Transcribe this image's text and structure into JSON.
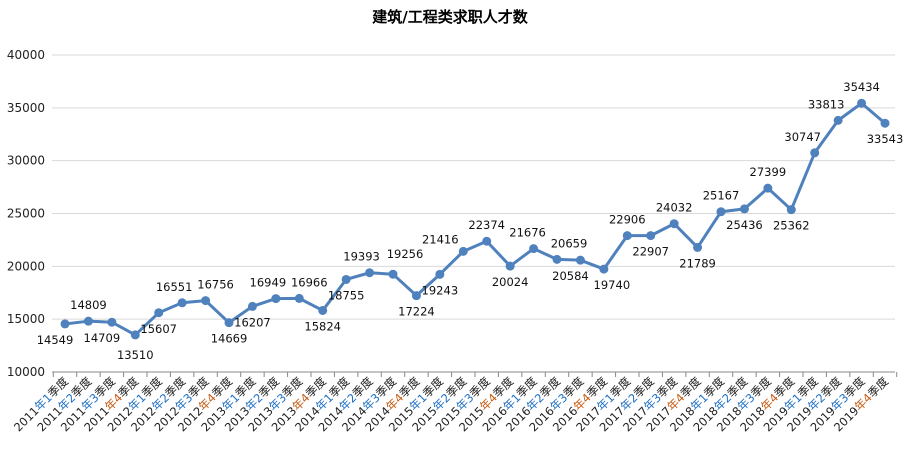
{
  "chart_data": {
    "type": "line",
    "title": "建筑/工程类求职人才数",
    "xlabel": "",
    "ylabel": "",
    "ylim": [
      10000,
      40000
    ],
    "yticks": [
      10000,
      15000,
      20000,
      25000,
      30000,
      35000,
      40000
    ],
    "grid": true,
    "legend": "none",
    "line_color": "#4F81BD",
    "categories": [
      "2011年1季度",
      "2011年2季度",
      "2011年3季度",
      "2011年4季度",
      "2012年1季度",
      "2012年2季度",
      "2012年3季度",
      "2012年4季度",
      "2013年1季度",
      "2013年2季度",
      "2013年3季度",
      "2013年4季度",
      "2014年1季度",
      "2014年2季度",
      "2014年3季度",
      "2014年4季度",
      "2015年1季度",
      "2015年2季度",
      "2015年3季度",
      "2015年4季度",
      "2016年1季度",
      "2016年2季度",
      "2016年3季度",
      "2016年4季度",
      "2017年1季度",
      "2017年2季度",
      "2017年3季度",
      "2017年4季度",
      "2018年1季度",
      "2018年2季度",
      "2018年3季度",
      "2018年4季度",
      "2019年1季度",
      "2019年2季度",
      "2019年3季度",
      "2019年4季度"
    ],
    "series": [
      {
        "values": [
          14549,
          14809,
          14709,
          13510,
          15607,
          16551,
          16756,
          14669,
          16207,
          16949,
          16966,
          15824,
          18755,
          19393,
          19256,
          17224,
          19243,
          21416,
          22374,
          20024,
          21676,
          20659,
          20584,
          19740,
          22906,
          22907,
          24032,
          21789,
          25167,
          25436,
          27399,
          25362,
          30747,
          33813,
          35434,
          33543
        ]
      }
    ]
  }
}
